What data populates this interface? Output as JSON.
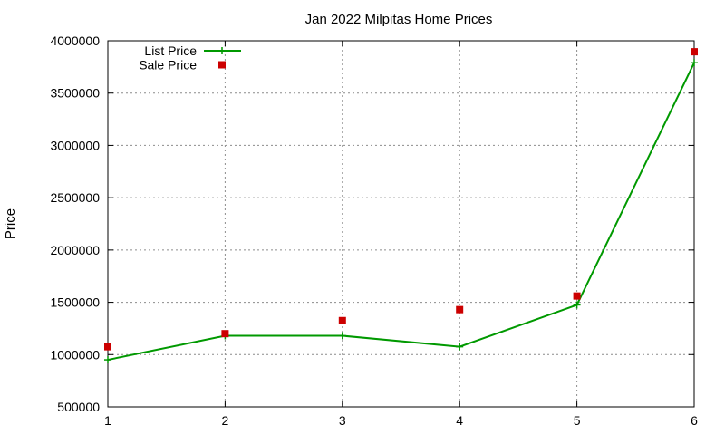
{
  "chart_data": {
    "type": "line",
    "title": "Jan 2022 Milpitas Home Prices",
    "xlabel": "",
    "ylabel": "Price",
    "xlim": [
      1,
      6
    ],
    "ylim": [
      500000,
      4000000
    ],
    "x_ticks": [
      1,
      2,
      3,
      4,
      5,
      6
    ],
    "y_ticks": [
      500000,
      1000000,
      1500000,
      2000000,
      2500000,
      3000000,
      3500000,
      4000000
    ],
    "grid": true,
    "legend_position": "top-left",
    "series": [
      {
        "name": "List Price",
        "style": "line+cross",
        "color": "#009900",
        "x": [
          1,
          2,
          3,
          4,
          5,
          6
        ],
        "values": [
          950000,
          1180000,
          1180000,
          1075000,
          1475000,
          3790000
        ]
      },
      {
        "name": "Sale Price",
        "style": "square",
        "color": "#cc0000",
        "x": [
          1,
          2,
          3,
          4,
          5,
          6
        ],
        "values": [
          1075000,
          1200000,
          1325000,
          1430000,
          1560000,
          3895000
        ]
      }
    ]
  }
}
